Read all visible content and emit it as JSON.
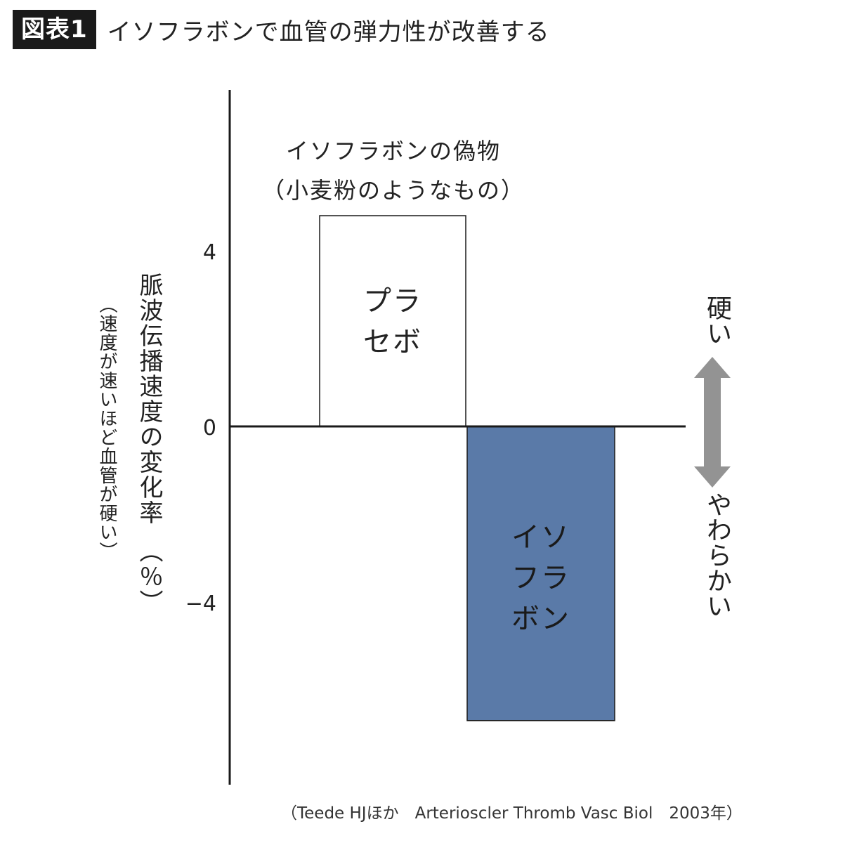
{
  "header": {
    "badge": "図表1",
    "title": "イソフラボンで血管の弾力性が改善する"
  },
  "chart_data": {
    "type": "bar",
    "categories": [
      "プラセボ",
      "イソフラボン"
    ],
    "values": [
      4.8,
      -6.7
    ],
    "bar_labels": [
      "プラセボ",
      "イソフラボン"
    ],
    "bar_colors": [
      "#ffffff",
      "#5a7aa8"
    ],
    "yticks": [
      "4",
      "0",
      "−4"
    ],
    "ytick_values": [
      4,
      0,
      -4
    ],
    "ylim": [
      -8,
      7.7
    ],
    "ylabel": "脈波伝播速度の変化率　（％）",
    "ylabel_sub": "（速度が速いほど血管が硬い）",
    "annotation_line1": "イソフラボンの偽物",
    "annotation_line2": "（小麦粉のようなもの）",
    "arrow_top_label": "硬い",
    "arrow_bottom_label": "やわらかい",
    "arrow_color": "#939393",
    "source": "（Teede HJほか　Arterioscler Thromb Vasc Biol　2003年）"
  }
}
